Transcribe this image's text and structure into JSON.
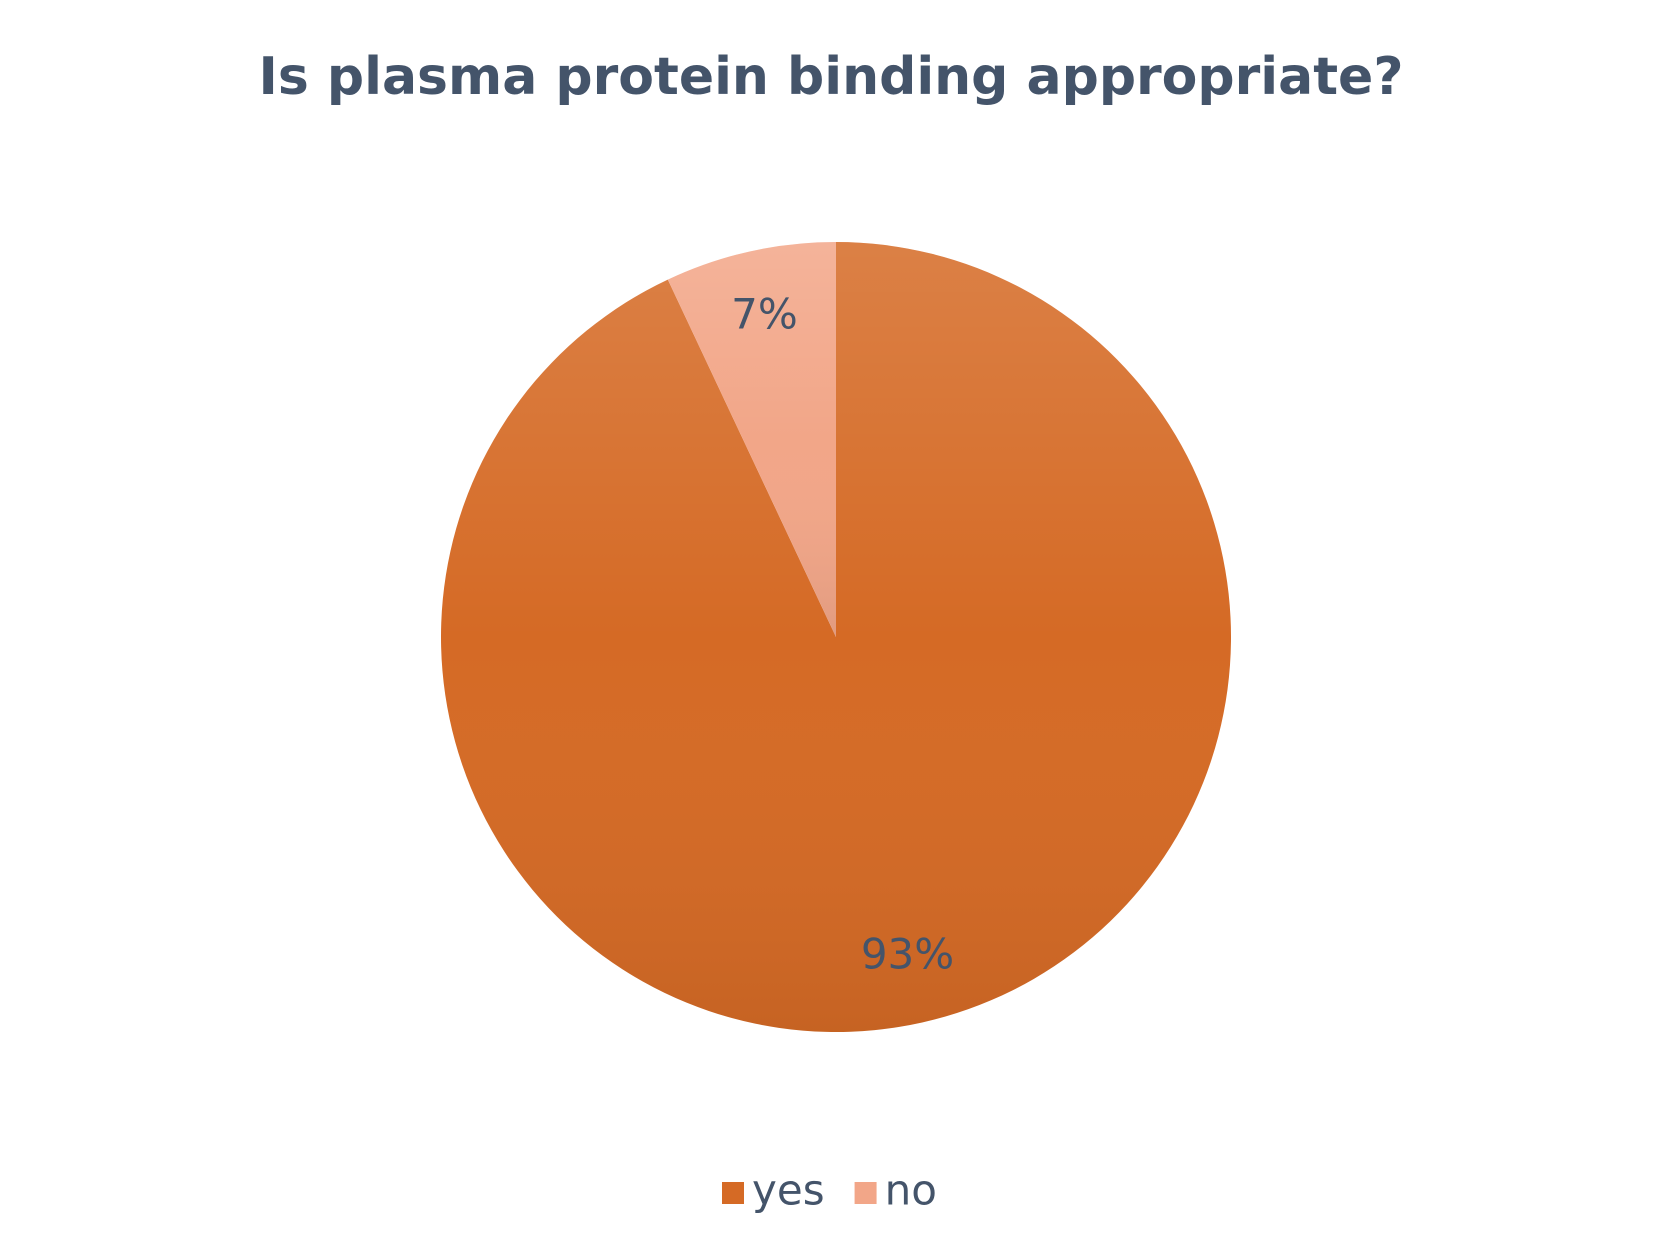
{
  "chart_data": {
    "type": "pie",
    "title": "Is plasma protein binding appropriate?",
    "categories": [
      "yes",
      "no"
    ],
    "values": [
      93,
      7
    ],
    "value_labels": [
      "93%",
      "7%"
    ],
    "colors": [
      "#d56a25",
      "#f2a688"
    ],
    "legend": "bottom"
  }
}
